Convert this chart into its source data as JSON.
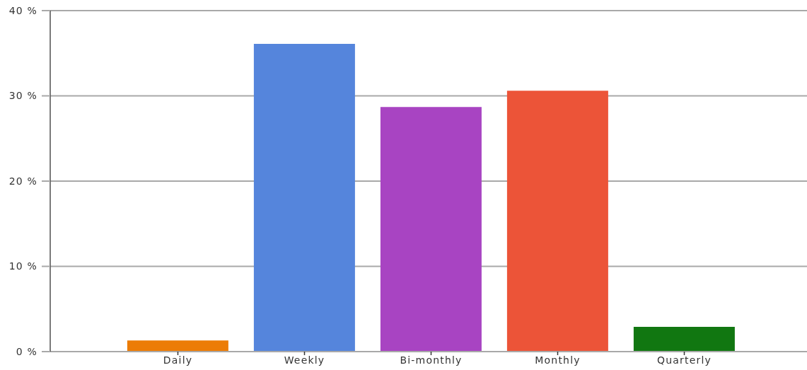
{
  "chart_data": {
    "type": "bar",
    "categories": [
      "Daily",
      "Weekly",
      "Bi-monthly",
      "Monthly",
      "Quarterly"
    ],
    "values": [
      1.3,
      36.1,
      28.7,
      30.6,
      2.9
    ],
    "colors": [
      "#ec7c06",
      "#5585dc",
      "#a844c2",
      "#ec5438",
      "#117711"
    ],
    "ylim": [
      0,
      40
    ],
    "yticks": [
      {
        "value": 0,
        "label": "0 %"
      },
      {
        "value": 10,
        "label": "10 %"
      },
      {
        "value": 20,
        "label": "20 %"
      },
      {
        "value": 30,
        "label": "30 %"
      },
      {
        "value": 40,
        "label": "40 %"
      }
    ],
    "grid": "y"
  }
}
